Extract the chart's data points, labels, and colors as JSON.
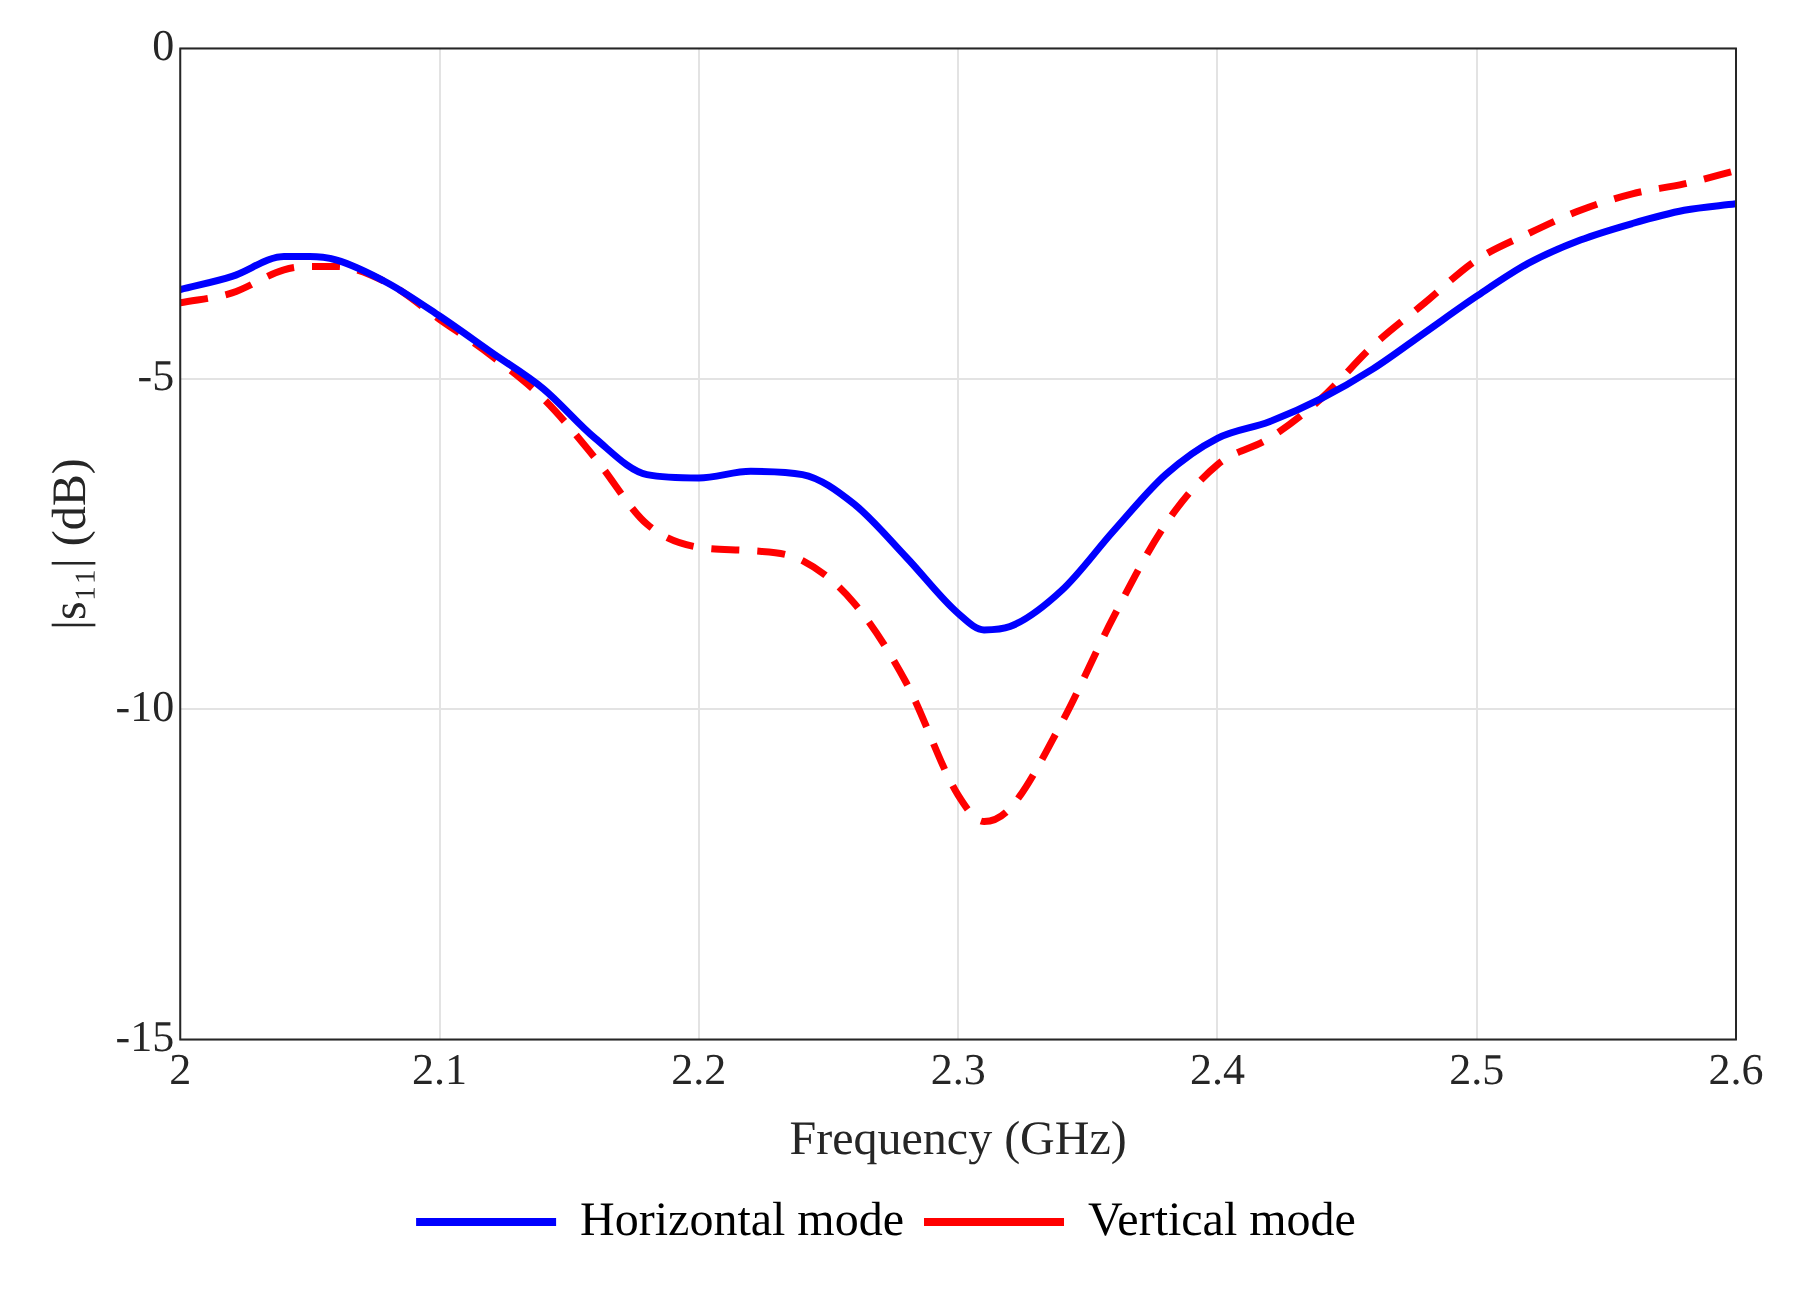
{
  "chart_data": {
    "type": "line",
    "xlabel": "Frequency (GHz)",
    "ylabel": "|s₁₁| (dB)",
    "x": [
      2.0,
      2.02,
      2.04,
      2.05,
      2.06,
      2.08,
      2.1,
      2.12,
      2.14,
      2.16,
      2.18,
      2.2,
      2.22,
      2.24,
      2.26,
      2.28,
      2.3,
      2.31,
      2.32,
      2.34,
      2.36,
      2.38,
      2.4,
      2.42,
      2.44,
      2.46,
      2.48,
      2.5,
      2.52,
      2.54,
      2.56,
      2.58,
      2.6
    ],
    "series": [
      {
        "name": "Horizontal mode",
        "color": "#0000ff",
        "line_style": "solid",
        "values": [
          -3.65,
          -3.45,
          -3.15,
          -3.15,
          -3.2,
          -3.55,
          -4.05,
          -4.6,
          -5.15,
          -5.9,
          -6.45,
          -6.5,
          -6.4,
          -6.45,
          -6.9,
          -7.7,
          -8.55,
          -8.8,
          -8.75,
          -8.2,
          -7.3,
          -6.45,
          -5.9,
          -5.65,
          -5.3,
          -4.85,
          -4.3,
          -3.75,
          -3.25,
          -2.9,
          -2.65,
          -2.45,
          -2.35
        ]
      },
      {
        "name": "Vertical mode",
        "color": "#ff0000",
        "line_style": "dashed",
        "values": [
          -3.85,
          -3.7,
          -3.35,
          -3.3,
          -3.3,
          -3.55,
          -4.1,
          -4.65,
          -5.3,
          -6.2,
          -7.2,
          -7.55,
          -7.6,
          -7.75,
          -8.4,
          -9.6,
          -11.3,
          -11.7,
          -11.5,
          -10.2,
          -8.6,
          -7.2,
          -6.3,
          -5.9,
          -5.3,
          -4.5,
          -3.85,
          -3.2,
          -2.8,
          -2.45,
          -2.2,
          -2.05,
          -1.85
        ]
      }
    ],
    "xlim": [
      2,
      2.6
    ],
    "xticks": [
      2,
      2.1,
      2.2,
      2.3,
      2.4,
      2.5,
      2.6
    ],
    "ylim": [
      -15,
      0
    ],
    "yticks": [
      -15,
      -10,
      -5,
      0
    ],
    "grid": true,
    "legend": "bottom",
    "marker": "none"
  }
}
